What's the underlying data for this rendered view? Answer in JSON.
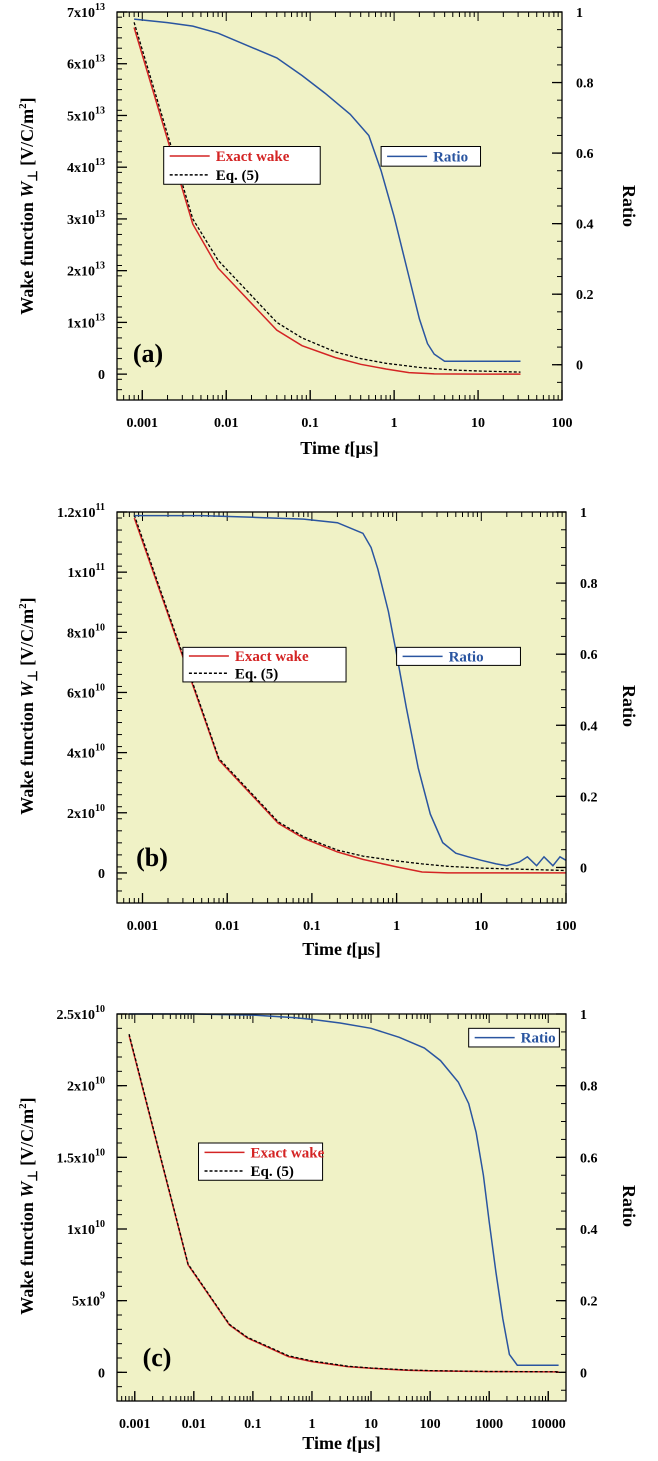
{
  "colors": {
    "plot_bg": "#f0f2c6",
    "exact_wake": "#d42424",
    "eq5": "#000000",
    "ratio": "#2a55a0"
  },
  "axis_titles": {
    "ylabel": "Wake function W⊥ [V/C/m²]",
    "xlabel": "Time t[μs]",
    "ylabel_right": "Ratio"
  },
  "chart_data": [
    {
      "type": "line",
      "panel_label": "(a)",
      "x_scale": "log",
      "xlim": [
        0.0005,
        100
      ],
      "xticks": [
        {
          "value": 0.001,
          "label": "0.001"
        },
        {
          "value": 0.01,
          "label": "0.01"
        },
        {
          "value": 0.1,
          "label": "0.1"
        },
        {
          "value": 1,
          "label": "1"
        },
        {
          "value": 10,
          "label": "10"
        },
        {
          "value": 100,
          "label": "100"
        }
      ],
      "ylim": [
        -5000000000000.0,
        70000000000000.0
      ],
      "yticks": [
        {
          "value": 0,
          "mant": "0",
          "exp": ""
        },
        {
          "value": 10000000000000.0,
          "mant": "1x10",
          "exp": "13"
        },
        {
          "value": 20000000000000.0,
          "mant": "2x10",
          "exp": "13"
        },
        {
          "value": 30000000000000.0,
          "mant": "3x10",
          "exp": "13"
        },
        {
          "value": 40000000000000.0,
          "mant": "4x10",
          "exp": "13"
        },
        {
          "value": 50000000000000.0,
          "mant": "5x10",
          "exp": "13"
        },
        {
          "value": 60000000000000.0,
          "mant": "6x10",
          "exp": "13"
        },
        {
          "value": 70000000000000.0,
          "mant": "7x10",
          "exp": "13"
        }
      ],
      "y2lim": [
        -0.1,
        1
      ],
      "y2ticks": [
        {
          "value": 0,
          "label": "0"
        },
        {
          "value": 0.2,
          "label": "0.2"
        },
        {
          "value": 0.4,
          "label": "0.4"
        },
        {
          "value": 0.6,
          "label": "0.6"
        },
        {
          "value": 0.8,
          "label": "0.8"
        },
        {
          "value": 1,
          "label": "1"
        }
      ],
      "legend_left": {
        "corner": [
          0.0018,
          44000000000000.0
        ],
        "size": [
          0.13,
          7300000000000.0
        ],
        "entries": [
          "Exact wake",
          "Eq. (5)"
        ]
      },
      "legend_right": {
        "corner": [
          0.7,
          44000000000000.0
        ],
        "size": [
          10.0,
          3800000000000.0
        ],
        "entries": [
          "Ratio"
        ]
      },
      "series": [
        {
          "name": "Exact wake",
          "axis": "left",
          "x": [
            0.0008,
            0.004,
            0.008,
            0.04,
            0.08,
            0.2,
            0.4,
            0.8,
            1.5,
            3,
            10,
            32
          ],
          "y": [
            67000000000000.0,
            29000000000000.0,
            20500000000000.0,
            8500000000000.0,
            5500000000000.0,
            3200000000000.0,
            1900000000000.0,
            1000000000000.0,
            300000000000.0,
            50000000000.0,
            0,
            0
          ]
        },
        {
          "name": "Eq. (5)",
          "axis": "left",
          "x": [
            0.0008,
            0.004,
            0.008,
            0.04,
            0.08,
            0.2,
            0.4,
            0.8,
            2,
            5,
            10,
            32
          ],
          "y": [
            68000000000000.0,
            30000000000000.0,
            22000000000000.0,
            10000000000000.0,
            7000000000000.0,
            4300000000000.0,
            3000000000000.0,
            2100000000000.0,
            1300000000000.0,
            800000000000.0,
            600000000000.0,
            400000000000.0
          ]
        },
        {
          "name": "Ratio",
          "axis": "right",
          "x": [
            0.0008,
            0.002,
            0.004,
            0.008,
            0.02,
            0.04,
            0.08,
            0.15,
            0.3,
            0.5,
            0.7,
            1.0,
            1.5,
            2.0,
            2.5,
            3.0,
            4.0,
            6,
            10,
            32
          ],
          "y": [
            0.98,
            0.97,
            0.96,
            0.94,
            0.9,
            0.87,
            0.82,
            0.77,
            0.71,
            0.65,
            0.55,
            0.42,
            0.25,
            0.13,
            0.06,
            0.03,
            0.01,
            0.01,
            0.01,
            0.01
          ]
        }
      ]
    },
    {
      "type": "line",
      "panel_label": "(b)",
      "x_scale": "log",
      "xlim": [
        0.0005,
        100
      ],
      "xticks": [
        {
          "value": 0.001,
          "label": "0.001"
        },
        {
          "value": 0.01,
          "label": "0.01"
        },
        {
          "value": 0.1,
          "label": "0.1"
        },
        {
          "value": 1,
          "label": "1"
        },
        {
          "value": 10,
          "label": "10"
        },
        {
          "value": 100,
          "label": "100"
        }
      ],
      "ylim": [
        -10000000000.0,
        120000000000.0
      ],
      "yticks": [
        {
          "value": 0,
          "mant": "0",
          "exp": ""
        },
        {
          "value": 20000000000.0,
          "mant": "2x10",
          "exp": "10"
        },
        {
          "value": 40000000000.0,
          "mant": "4x10",
          "exp": "10"
        },
        {
          "value": 60000000000.0,
          "mant": "6x10",
          "exp": "10"
        },
        {
          "value": 80000000000.0,
          "mant": "8x10",
          "exp": "10"
        },
        {
          "value": 100000000000.0,
          "mant": "1x10",
          "exp": "11"
        },
        {
          "value": 120000000000.0,
          "mant": "1.2x10",
          "exp": "11"
        }
      ],
      "y2lim": [
        -0.1,
        1
      ],
      "y2ticks": [
        {
          "value": 0,
          "label": "0"
        },
        {
          "value": 0.2,
          "label": "0.2"
        },
        {
          "value": 0.4,
          "label": "0.4"
        },
        {
          "value": 0.6,
          "label": "0.6"
        },
        {
          "value": 0.8,
          "label": "0.8"
        },
        {
          "value": 1,
          "label": "1"
        }
      ],
      "legend_left": {
        "corner": [
          0.003,
          75000000000.0
        ],
        "size": [
          0.25,
          11500000000.0
        ],
        "entries": [
          "Exact wake",
          "Eq. (5)"
        ]
      },
      "legend_right": {
        "corner": [
          1.0,
          75000000000.0
        ],
        "size": [
          28.0,
          6000000000.0
        ],
        "entries": [
          "Ratio"
        ]
      },
      "series": [
        {
          "name": "Exact wake",
          "axis": "left",
          "x": [
            0.0008,
            0.008,
            0.04,
            0.08,
            0.2,
            0.4,
            1,
            2,
            4,
            10,
            100
          ],
          "y": [
            118000000000.0,
            37500000000.0,
            16500000000.0,
            11500000000.0,
            7000000000.0,
            4500000000.0,
            2000000000.0,
            300000000.0,
            0,
            0,
            0
          ]
        },
        {
          "name": "Eq. (5)",
          "axis": "left",
          "x": [
            0.0008,
            0.008,
            0.04,
            0.08,
            0.2,
            0.4,
            1,
            2,
            4,
            10,
            100
          ],
          "y": [
            119000000000.0,
            38000000000.0,
            17000000000.0,
            12000000000.0,
            7600000000.0,
            5600000000.0,
            4000000000.0,
            3000000000.0,
            2200000000.0,
            1600000000.0,
            800000000.0
          ]
        },
        {
          "name": "Ratio",
          "axis": "right",
          "x": [
            0.0008,
            0.005,
            0.02,
            0.08,
            0.2,
            0.4,
            0.5,
            0.6,
            0.8,
            1.0,
            1.3,
            1.8,
            2.5,
            3.5,
            5,
            7,
            10,
            15,
            20,
            28,
            35,
            45,
            55,
            70,
            85,
            100
          ],
          "y": [
            0.99,
            0.99,
            0.985,
            0.98,
            0.97,
            0.94,
            0.9,
            0.84,
            0.72,
            0.6,
            0.45,
            0.28,
            0.15,
            0.07,
            0.04,
            0.03,
            0.02,
            0.01,
            0.005,
            0.015,
            0.03,
            0.005,
            0.03,
            0.005,
            0.03,
            0.02
          ]
        }
      ]
    },
    {
      "type": "line",
      "panel_label": "(c)",
      "x_scale": "log",
      "xlim": [
        0.0005,
        20000
      ],
      "xticks": [
        {
          "value": 0.001,
          "label": "0.001"
        },
        {
          "value": 0.01,
          "label": "0.01"
        },
        {
          "value": 0.1,
          "label": "0.1"
        },
        {
          "value": 1,
          "label": "1"
        },
        {
          "value": 10,
          "label": "10"
        },
        {
          "value": 100,
          "label": "100"
        },
        {
          "value": 1000,
          "label": "1000"
        },
        {
          "value": 10000,
          "label": "10000"
        }
      ],
      "ylim": [
        -2000000000.0,
        25000000000.0
      ],
      "yticks": [
        {
          "value": 0,
          "mant": "0",
          "exp": ""
        },
        {
          "value": 5000000000.0,
          "mant": "5x10",
          "exp": "9"
        },
        {
          "value": 10000000000.0,
          "mant": "1x10",
          "exp": "10"
        },
        {
          "value": 15000000000.0,
          "mant": "1.5x10",
          "exp": "10"
        },
        {
          "value": 20000000000.0,
          "mant": "2x10",
          "exp": "10"
        },
        {
          "value": 25000000000.0,
          "mant": "2.5x10",
          "exp": "10"
        }
      ],
      "y2lim": [
        -0.08,
        1
      ],
      "y2ticks": [
        {
          "value": 0,
          "label": "0"
        },
        {
          "value": 0.2,
          "label": "0.2"
        },
        {
          "value": 0.4,
          "label": "0.4"
        },
        {
          "value": 0.6,
          "label": "0.6"
        },
        {
          "value": 0.8,
          "label": "0.8"
        },
        {
          "value": 1,
          "label": "1"
        }
      ],
      "legend_left": {
        "corner": [
          0.012,
          16000000000.0
        ],
        "size": [
          1.5,
          2600000000.0
        ],
        "entries": [
          "Exact wake",
          "Eq. (5)"
        ]
      },
      "legend_right": {
        "corner": [
          450,
          24000000000.0
        ],
        "size": [
          15000,
          1300000000.0
        ],
        "entries": [
          "Ratio"
        ]
      },
      "series": [
        {
          "name": "Exact wake",
          "axis": "left",
          "x": [
            0.0008,
            0.008,
            0.04,
            0.08,
            0.4,
            1,
            4,
            10,
            40,
            100,
            1000,
            15000
          ],
          "y": [
            23500000000.0,
            7500000000.0,
            3300000000.0,
            2400000000.0,
            1100000000.0,
            750000000.0,
            400000000.0,
            280000000.0,
            150000000.0,
            100000000.0,
            50000000.0,
            30000000.0
          ]
        },
        {
          "name": "Eq. (5)",
          "axis": "left",
          "x": [
            0.0008,
            0.008,
            0.04,
            0.08,
            0.4,
            1,
            4,
            10,
            40,
            100,
            1000,
            15000
          ],
          "y": [
            23600000000.0,
            7550000000.0,
            3350000000.0,
            2450000000.0,
            1150000000.0,
            800000000.0,
            430000000.0,
            300000000.0,
            170000000.0,
            120000000.0,
            60000000.0,
            40000000.0
          ]
        },
        {
          "name": "Ratio",
          "axis": "right",
          "x": [
            0.0008,
            0.01,
            0.1,
            0.5,
            1,
            3,
            10,
            30,
            80,
            150,
            300,
            450,
            600,
            800,
            1000,
            1300,
            1700,
            2200,
            3000,
            5000,
            15000
          ],
          "y": [
            1.0,
            1.0,
            0.997,
            0.99,
            0.985,
            0.975,
            0.96,
            0.935,
            0.905,
            0.87,
            0.81,
            0.75,
            0.67,
            0.55,
            0.42,
            0.28,
            0.15,
            0.05,
            0.02,
            0.02,
            0.02
          ]
        }
      ]
    }
  ]
}
